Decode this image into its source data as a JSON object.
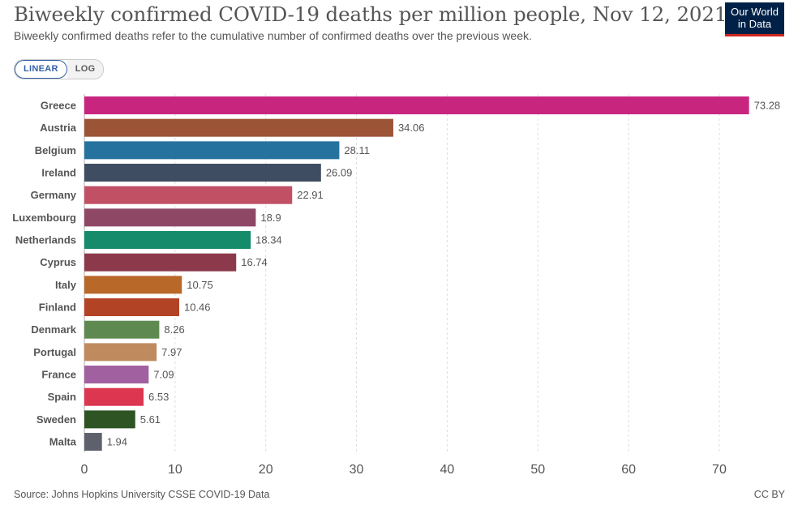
{
  "header": {
    "title": "Biweekly confirmed COVID-19 deaths per million people, Nov 12, 2021",
    "subtitle": "Biweekly confirmed deaths refer to the cumulative number of confirmed deaths over the previous week."
  },
  "logo": {
    "line1": "Our World",
    "line2": "in Data",
    "background": "#002147",
    "accent": "#ce261e"
  },
  "scale_toggle": {
    "linear_label": "LINEAR",
    "log_label": "LOG",
    "selected": "LINEAR"
  },
  "footer": {
    "source": "Source: Johns Hopkins University CSSE COVID-19 Data",
    "license": "CC BY"
  },
  "chart_data": {
    "type": "bar",
    "orientation": "horizontal",
    "title": "Biweekly confirmed COVID-19 deaths per million people, Nov 12, 2021",
    "xlabel": "",
    "ylabel": "",
    "xlim": [
      0,
      75
    ],
    "x_ticks": [
      0,
      10,
      20,
      30,
      40,
      50,
      60,
      70
    ],
    "grid": true,
    "categories": [
      "Greece",
      "Austria",
      "Belgium",
      "Ireland",
      "Germany",
      "Luxembourg",
      "Netherlands",
      "Cyprus",
      "Italy",
      "Finland",
      "Denmark",
      "Portugal",
      "France",
      "Spain",
      "Sweden",
      "Malta"
    ],
    "values": [
      73.28,
      34.06,
      28.11,
      26.09,
      22.91,
      18.9,
      18.34,
      16.74,
      10.75,
      10.46,
      8.26,
      7.97,
      7.09,
      6.53,
      5.61,
      1.94
    ],
    "value_labels": [
      "73.28",
      "34.06",
      "28.11",
      "26.09",
      "22.91",
      "18.9",
      "18.34",
      "16.74",
      "10.75",
      "10.46",
      "8.26",
      "7.97",
      "7.09",
      "6.53",
      "5.61",
      "1.94"
    ],
    "colors": [
      "#c8257f",
      "#9b5435",
      "#26729e",
      "#3f4d63",
      "#c15065",
      "#8e4866",
      "#168b6b",
      "#8c3a4b",
      "#b86829",
      "#b34325",
      "#5e8a52",
      "#bf8b5e",
      "#a1609f",
      "#dc3650",
      "#2d5422",
      "#5e616c"
    ]
  }
}
